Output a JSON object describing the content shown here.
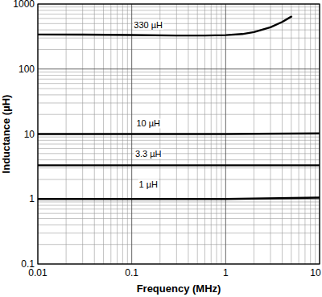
{
  "chart_data": {
    "type": "line",
    "x_label": "Frequency (MHz)",
    "y_label": "Inductance (µH)",
    "log": true,
    "grid": true,
    "color": "#000000",
    "xlim": [
      0.01,
      10
    ],
    "ylim": [
      0.1,
      1000
    ],
    "xticks": [
      0.01,
      0.1,
      1,
      10
    ],
    "yticks": [
      0.1,
      1,
      10,
      100,
      1000
    ],
    "series": [
      {
        "x": [
          0.01,
          0.03,
          0.1,
          0.3,
          0.6,
          1,
          1.5,
          2,
          3,
          4,
          5
        ],
        "values": [
          340,
          338,
          333,
          328,
          328,
          332,
          345,
          370,
          440,
          530,
          640
        ]
      },
      {
        "x": [
          0.01,
          1,
          10
        ],
        "values": [
          10,
          10,
          10.2
        ]
      },
      {
        "x": [
          0.01,
          1,
          10
        ],
        "values": [
          3.3,
          3.3,
          3.3
        ]
      },
      {
        "x": [
          0.01,
          1,
          10
        ],
        "values": [
          1,
          1,
          1.05
        ]
      }
    ],
    "annotations": [
      {
        "text": "330 µH",
        "x": 0.15,
        "y": 480
      },
      {
        "text": "10 µH",
        "x": 0.15,
        "y": 14.5
      },
      {
        "text": "3.3 µH",
        "x": 0.15,
        "y": 5
      },
      {
        "text": "1 µH",
        "x": 0.15,
        "y": 1.7
      }
    ]
  }
}
